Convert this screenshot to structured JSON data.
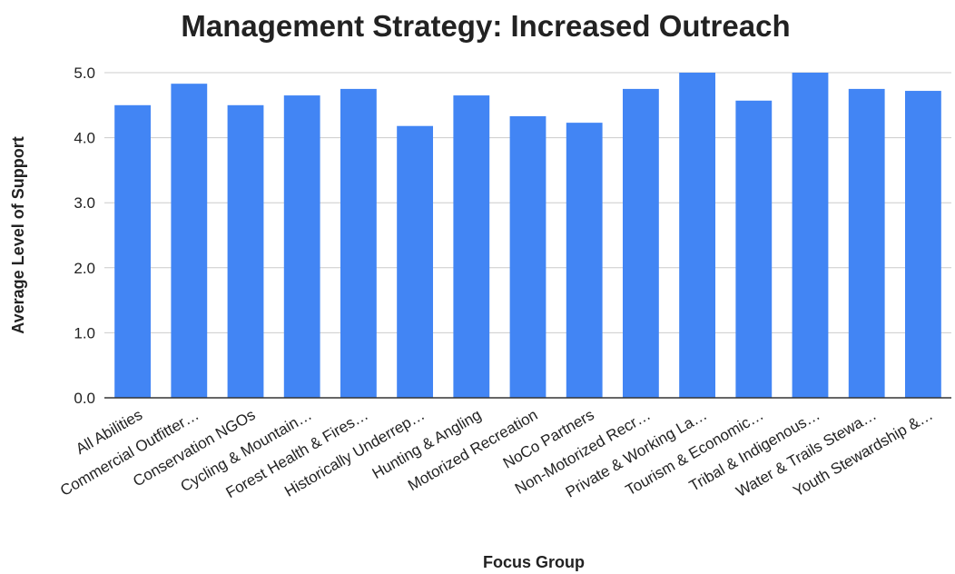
{
  "chart_data": {
    "type": "bar",
    "title": "Management Strategy: Increased Outreach",
    "x_label": "Focus Group",
    "y_label": "Average Level of Support",
    "categories": [
      "All Abilities",
      "Commercial Outfitter…",
      "Conservation NGOs",
      "Cycling & Mountain…",
      "Forest Health & Fires…",
      "Historically Underrep…",
      "Hunting & Angling",
      "Motorized Recreation",
      "NoCo Partners",
      "Non-Motorized Recr…",
      "Private & Working La…",
      "Tourism & Economic…",
      "Tribal & Indigenous…",
      "Water & Trails Stewa…",
      "Youth Stewardship &…"
    ],
    "values": [
      4.5,
      4.83,
      4.5,
      4.65,
      4.75,
      4.18,
      4.65,
      4.33,
      4.23,
      4.75,
      5.0,
      4.57,
      5.0,
      4.75,
      4.72
    ],
    "color": "#4285f4",
    "ylim": [
      0,
      5
    ],
    "yticks": [
      {
        "value": 0,
        "label": "0.0"
      },
      {
        "value": 1,
        "label": "1.0"
      },
      {
        "value": 2,
        "label": "2.0"
      },
      {
        "value": 3,
        "label": "3.0"
      },
      {
        "value": 4,
        "label": "4.0"
      },
      {
        "value": 5,
        "label": "5.0"
      }
    ],
    "grid": true
  }
}
